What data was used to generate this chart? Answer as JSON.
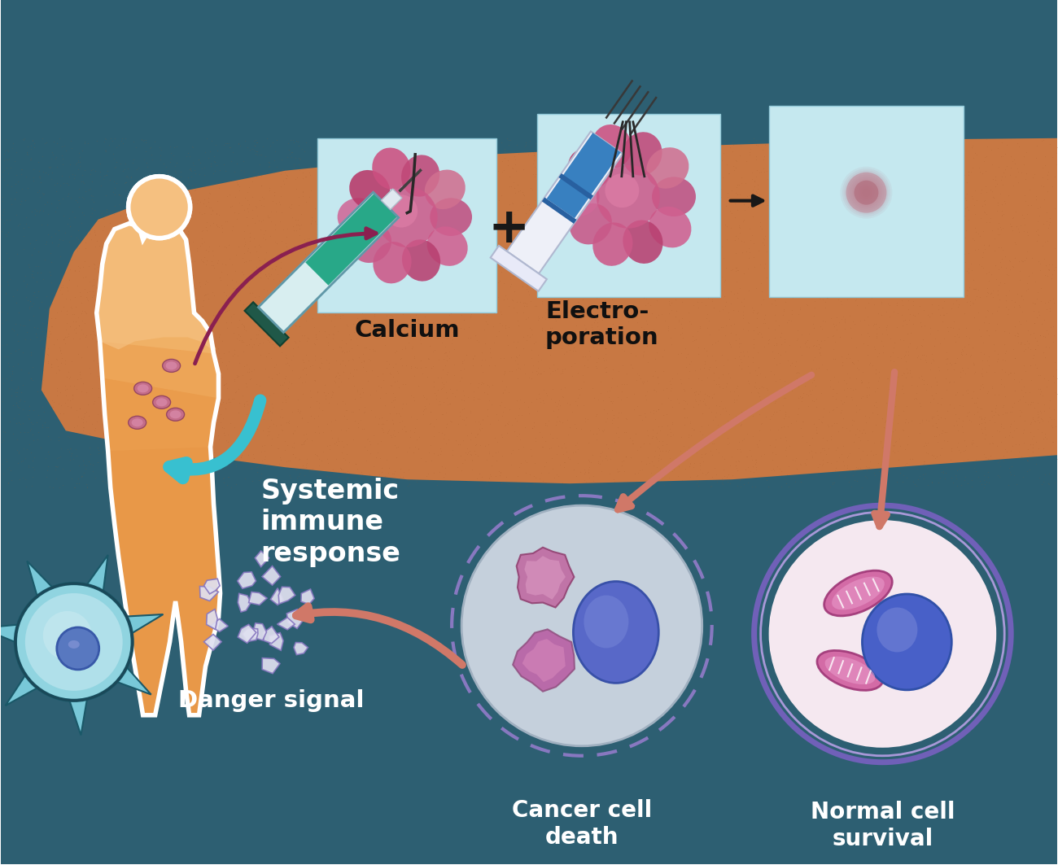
{
  "bg_dark_teal": "#2d5f72",
  "bg_orange": "#c87843",
  "bg_bottom_teal": "#2a5a6e",
  "box_light_blue": "#c5e8ef",
  "text_calcium": "Calcium",
  "text_electroporation": "Electro-\nporation",
  "text_systemic": "Systemic\nimmune\nresponse",
  "text_danger": "Danger signal",
  "text_cancer_death": "Cancer cell\ndeath",
  "text_normal_survival": "Normal cell\nsurvival",
  "silhouette_color": "#e8a060",
  "silhouette_top": "#f0c090",
  "silhouette_bottom": "#e89050",
  "tumor_dark": "#a83060",
  "tumor_mid": "#c85090",
  "tumor_light": "#e090b0",
  "cell_cancer_fill": "#c8d8e0",
  "cell_normal_fill": "#f0e0e8",
  "cell_purple_border": "#8878c0",
  "cell_purple_border2": "#7060b8",
  "mitochondria_fill": "#d060a0",
  "mitochondria_edge": "#a04080",
  "blue_nucleus": "#5060c0",
  "arrow_salmon": "#d07868",
  "arrow_cyan": "#38c0d0",
  "arrow_maroon": "#8a2050",
  "arrow_black": "#181818",
  "syringe1_fill": "#28a888",
  "syringe1_barrel": "#d8eef0",
  "syringe2_fill": "#3880c0",
  "syringe2_white": "#eef0f8",
  "dendritic_fill": "#78c8d8",
  "dendritic_edge": "#1a5868",
  "dendritic_nucleus": "#5878c0",
  "danger_frag_fill": "#e0e0f0",
  "danger_frag_edge": "#8878c0",
  "figsize": [
    13.0,
    10.63
  ]
}
